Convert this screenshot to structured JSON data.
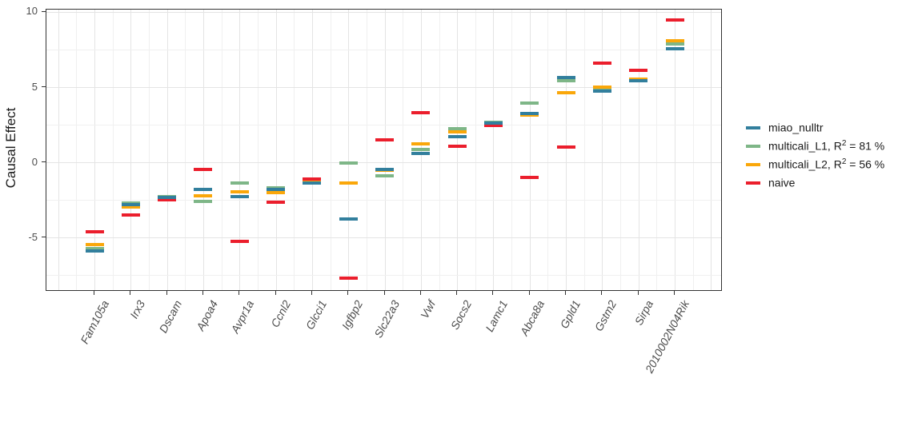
{
  "figure": {
    "background": "#ffffff",
    "y_axis_title": "Causal Effect"
  },
  "chart_data": {
    "type": "scatter",
    "marker": "horizontal-dash",
    "title": "",
    "xlabel": "",
    "ylabel": "Causal Effect",
    "grid": "on",
    "legend_position": "right",
    "x_labels_style": "italic, rotated",
    "categories": [
      "Fam105a",
      "Irx3",
      "Dscam",
      "Apoa4",
      "Avpr1a",
      "Ccnl2",
      "Glcci1",
      "Igfbp2",
      "Slc22a3",
      "Vwf",
      "Socs2",
      "Lamc1",
      "Abca8a",
      "Gpld1",
      "Gstm2",
      "Sirpa",
      "2010002N04Rik"
    ],
    "series": [
      {
        "name": "miao_nulltr",
        "color": "#327f9d",
        "values": [
          -5.9,
          -2.8,
          -2.35,
          -1.8,
          -2.3,
          -1.8,
          -1.35,
          -3.75,
          -0.45,
          0.6,
          1.7,
          2.6,
          3.25,
          5.65,
          4.75,
          5.4,
          7.55
        ]
      },
      {
        "name": "multicali_L1, R2 = 81 %",
        "color": "#7eb687",
        "values": [
          -5.75,
          -2.7,
          -2.3,
          -2.6,
          -1.35,
          -1.7,
          -1.3,
          -0.05,
          -0.9,
          0.85,
          2.25,
          2.65,
          3.95,
          5.4,
          4.85,
          5.5,
          7.85
        ]
      },
      {
        "name": "multicali_L2, R2 = 56 %",
        "color": "#faa70a",
        "values": [
          -5.45,
          -2.95,
          -2.35,
          -2.2,
          -1.95,
          -2.0,
          -1.3,
          -1.35,
          -0.5,
          1.25,
          2.0,
          2.55,
          3.15,
          4.65,
          5.0,
          5.55,
          8.1
        ]
      },
      {
        "name": "naive",
        "color": "#eb1e2c",
        "values": [
          -4.6,
          -3.5,
          -2.5,
          -0.45,
          -5.25,
          -2.65,
          -1.1,
          -7.7,
          1.5,
          3.3,
          1.05,
          2.45,
          -1.0,
          1.0,
          6.6,
          6.1,
          9.45
        ]
      }
    ],
    "ylim": [
      -8.6,
      10.15
    ],
    "y_major_breaks": [
      10,
      5,
      0,
      -5
    ],
    "y_tick_labels": [
      "10",
      "5",
      "0",
      "-5"
    ],
    "y_minor_breaks": [
      7.5,
      2.5,
      -2.5,
      -7.5
    ]
  },
  "legend": {
    "items": [
      {
        "pre": "miao_nulltr",
        "sup": "",
        "post": ""
      },
      {
        "pre": "multicali_L1, R",
        "sup": "2",
        "post": " = 81 %"
      },
      {
        "pre": "multicali_L2, R",
        "sup": "2",
        "post": " = 56 %"
      },
      {
        "pre": "naive",
        "sup": "",
        "post": ""
      }
    ]
  }
}
